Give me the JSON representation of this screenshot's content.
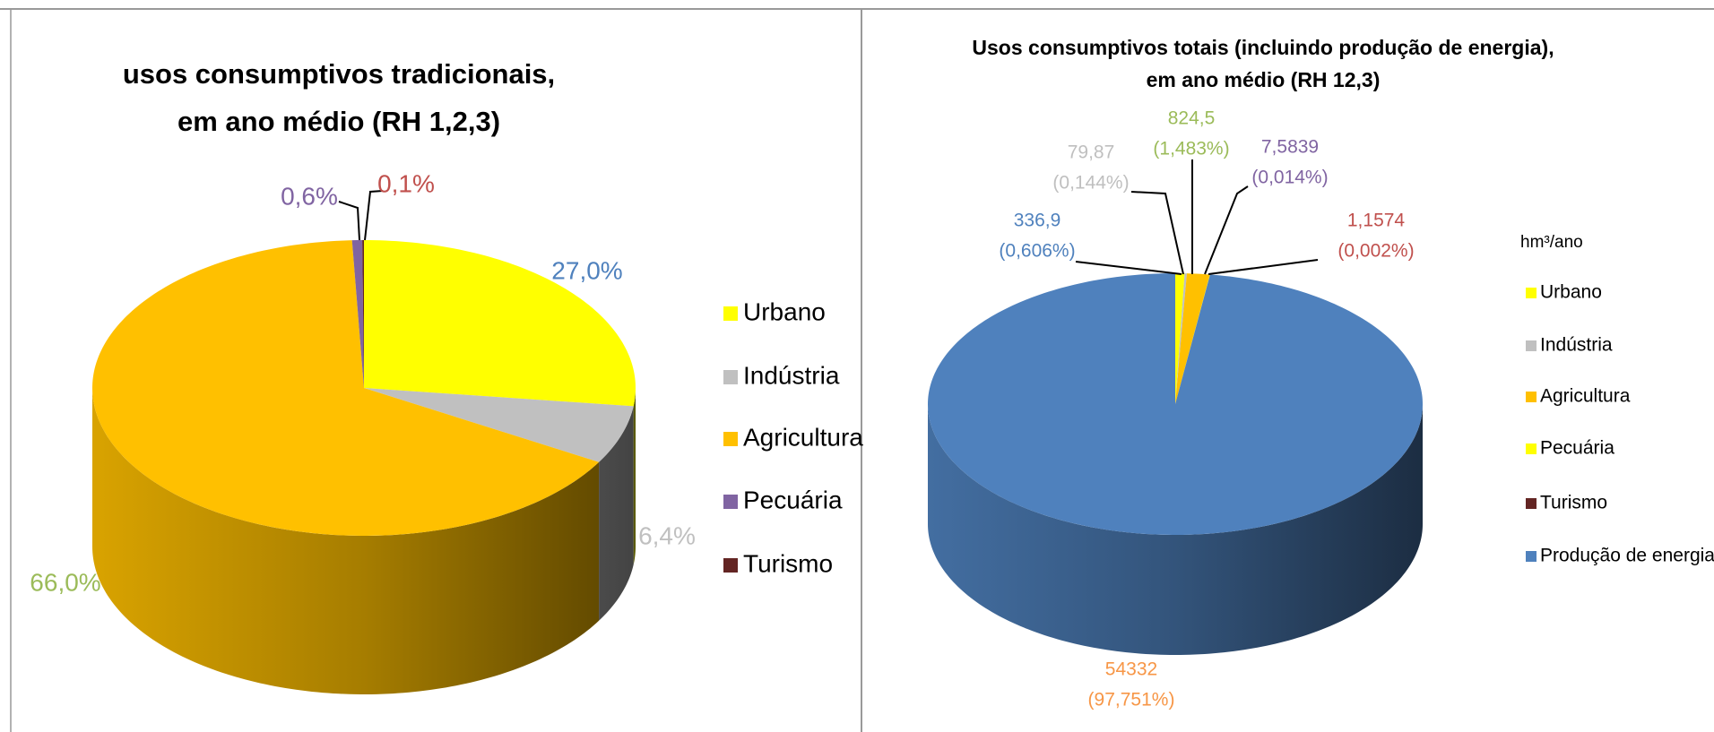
{
  "chart_data": [
    {
      "type": "pie",
      "title": [
        "usos consumptivos tradicionais,",
        "em ano médio (RH 1,2,3)"
      ],
      "categories": [
        "Urbano",
        "Indústria",
        "Agricultura",
        "Pecuária",
        "Turismo"
      ],
      "values": [
        27.0,
        6.4,
        66.0,
        0.6,
        0.1
      ],
      "value_labels": [
        "27,0%",
        "6,4%",
        "66,0%",
        "0,6%",
        "0,1%"
      ],
      "colors": [
        "#ffff00",
        "#c0c0c0",
        "#ffc000",
        "#8064a2",
        "#632523"
      ],
      "label_colors": [
        "#4f81bd",
        "#c0c0c0",
        "#9bbb59",
        "#8064a2",
        "#c0504d"
      ]
    },
    {
      "type": "pie",
      "title": [
        "Usos consumptivos totais (incluindo produção de energia),",
        "em ano médio (RH 12,3)"
      ],
      "unit_label": "hm³/ano",
      "categories": [
        "Urbano",
        "Indústria",
        "Agricultura",
        "Pecuária",
        "Turismo",
        "Produção de energia"
      ],
      "values": [
        336.9,
        79.87,
        824.5,
        7.5839,
        1.1574,
        54332
      ],
      "value_labels": [
        "336,9",
        "79,87",
        "824,5",
        "7,5839",
        "1,1574",
        "54332"
      ],
      "percents": [
        0.606,
        0.144,
        1.483,
        0.014,
        0.002,
        97.751
      ],
      "percent_labels": [
        "(0,606%)",
        "(0,144%)",
        "(1,483%)",
        "(0,014%)",
        "(0,002%)",
        "(97,751%)"
      ],
      "colors": [
        "#ffff00",
        "#c0c0c0",
        "#ffc000",
        "#ffff00",
        "#632523",
        "#4f81bd"
      ],
      "label_colors": [
        "#4f81bd",
        "#bfbfbf",
        "#9bbb59",
        "#8064a2",
        "#c0504d",
        "#f79646"
      ]
    }
  ]
}
